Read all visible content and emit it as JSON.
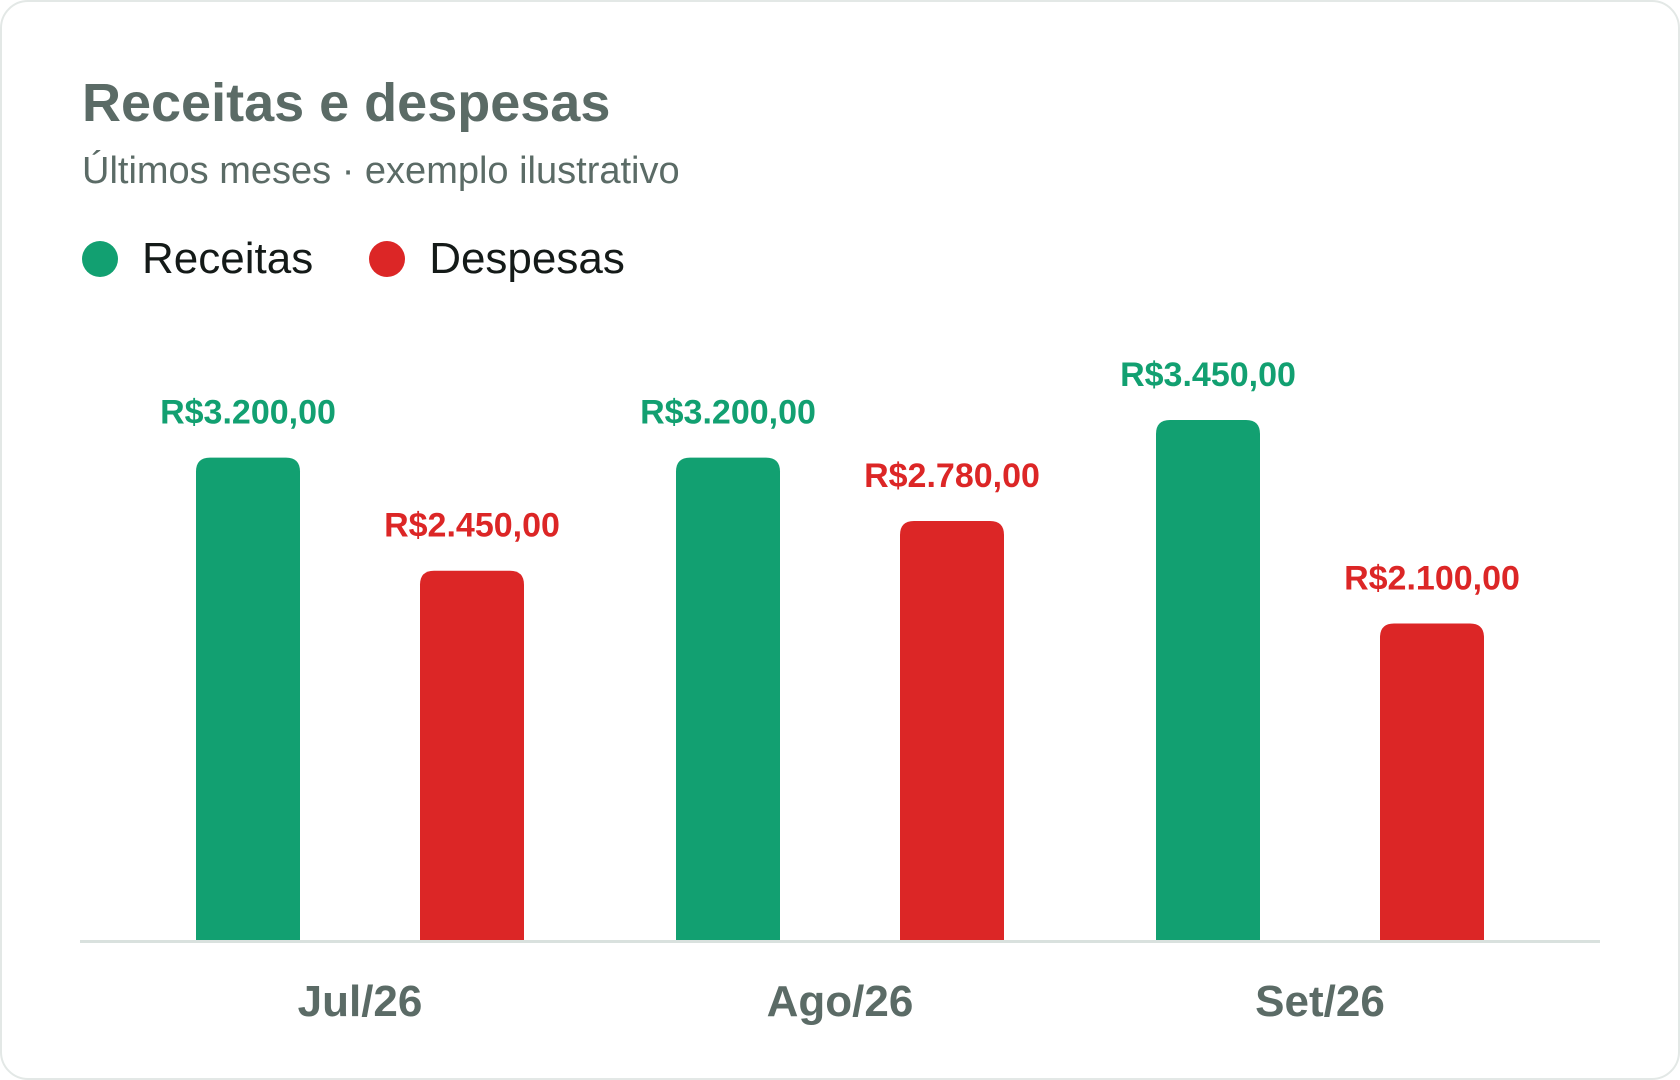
{
  "title": "Receitas e despesas",
  "subtitle": "Últimos meses · exemplo ilustrativo",
  "colors": {
    "receitas": "#12a071",
    "despesas": "#dc2626",
    "axis": "#d9e1de",
    "category_text": "#5b6b66"
  },
  "legend": [
    {
      "name": "Receitas",
      "color": "#12a071"
    },
    {
      "name": "Despesas",
      "color": "#dc2626"
    }
  ],
  "chart_data": {
    "type": "bar",
    "title": "Receitas e despesas",
    "subtitle": "Últimos meses · exemplo ilustrativo",
    "categories": [
      "Jul/26",
      "Ago/26",
      "Set/26"
    ],
    "series": [
      {
        "name": "Receitas",
        "color": "#12a071",
        "values": [
          3200,
          3200,
          3450
        ],
        "labels": [
          "R$3.200,00",
          "R$3.200,00",
          "R$3.450,00"
        ]
      },
      {
        "name": "Despesas",
        "color": "#dc2626",
        "values": [
          2450,
          2780,
          2100
        ],
        "labels": [
          "R$2.450,00",
          "R$2.780,00",
          "R$2.100,00"
        ]
      }
    ],
    "xlabel": "",
    "ylabel": "",
    "ylim": [
      0,
      3450
    ],
    "grid": false,
    "legend_position": "top-left"
  }
}
